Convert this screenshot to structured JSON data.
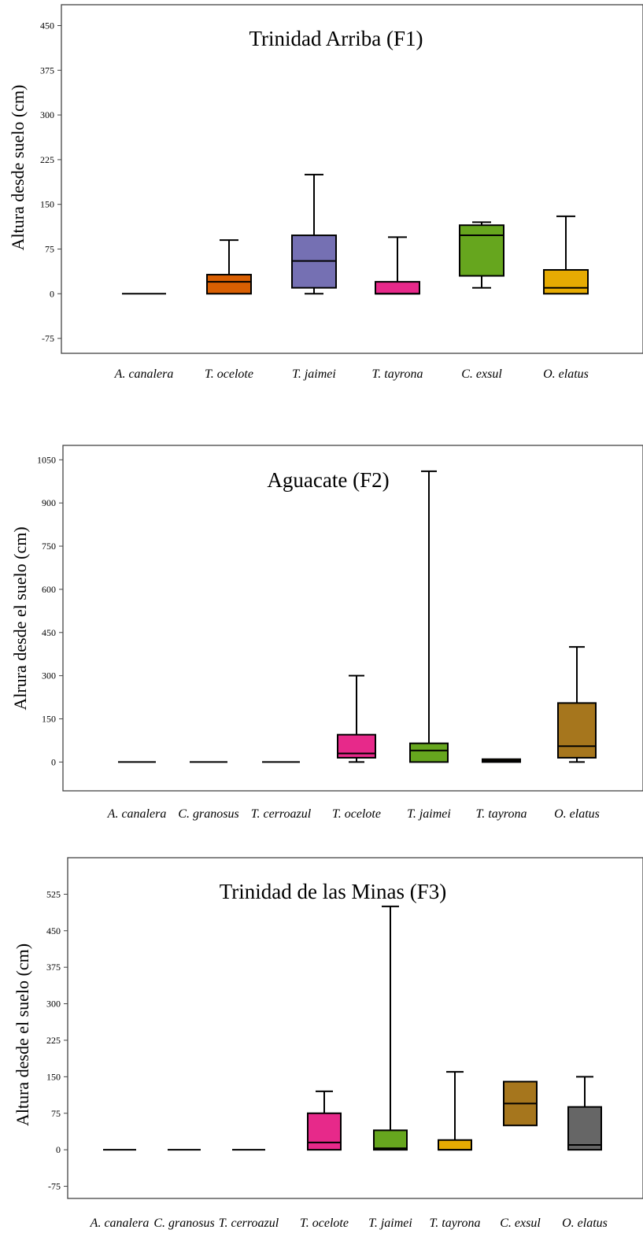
{
  "chart_data": [
    {
      "type": "box",
      "title": "Trinidad Arriba (F1)",
      "ylabel": "Altura desde suelo (cm)",
      "ylim": [
        -100,
        485
      ],
      "yticks": [
        -75,
        0,
        75,
        150,
        225,
        300,
        375,
        450
      ],
      "categories": [
        "A. canalera",
        "T. ocelote",
        "T. jaimei",
        "T. tayrona",
        "C. exsul",
        "O. elatus"
      ],
      "boxes": [
        {
          "category": "A. canalera",
          "color": "#000000",
          "min": 0,
          "q1": 0,
          "median": 0,
          "q3": 0,
          "max": 0
        },
        {
          "category": "T. ocelote",
          "color": "#d95f02",
          "min": 0,
          "q1": 0,
          "median": 20,
          "q3": 32,
          "max": 90
        },
        {
          "category": "T. jaimei",
          "color": "#7570b3",
          "min": 0,
          "q1": 10,
          "median": 55,
          "q3": 98,
          "max": 200
        },
        {
          "category": "T. tayrona",
          "color": "#e7298a",
          "min": 0,
          "q1": 0,
          "median": 0,
          "q3": 20,
          "max": 95
        },
        {
          "category": "C. exsul",
          "color": "#66a61e",
          "min": 10,
          "q1": 30,
          "median": 98,
          "q3": 115,
          "max": 120
        },
        {
          "category": "O. elatus",
          "color": "#e6ab02",
          "min": 0,
          "q1": 0,
          "median": 10,
          "q3": 40,
          "max": 130
        }
      ]
    },
    {
      "type": "box",
      "title": "Aguacate (F2)",
      "ylabel": "Alrura desde el suelo (cm)",
      "ylim": [
        -100,
        1100
      ],
      "yticks": [
        0,
        150,
        300,
        450,
        600,
        750,
        900,
        1050
      ],
      "categories": [
        "A. canalera",
        "C. granosus",
        "T. cerroazul",
        "T. ocelote",
        "T. jaimei",
        "T. tayrona",
        "O. elatus"
      ],
      "boxes": [
        {
          "category": "A. canalera",
          "color": "#000000",
          "min": 0,
          "q1": 0,
          "median": 0,
          "q3": 0,
          "max": 0
        },
        {
          "category": "C. granosus",
          "color": "#000000",
          "min": 0,
          "q1": 0,
          "median": 0,
          "q3": 0,
          "max": 0
        },
        {
          "category": "T. cerroazul",
          "color": "#000000",
          "min": 0,
          "q1": 0,
          "median": 0,
          "q3": 0,
          "max": 0
        },
        {
          "category": "T. ocelote",
          "color": "#e7298a",
          "min": 0,
          "q1": 15,
          "median": 30,
          "q3": 95,
          "max": 300
        },
        {
          "category": "T. jaimei",
          "color": "#66a61e",
          "min": 0,
          "q1": 0,
          "median": 40,
          "q3": 65,
          "max": 1010
        },
        {
          "category": "T. tayrona",
          "color": "#e6ab02",
          "min": 0,
          "q1": 0,
          "median": 5,
          "q3": 10,
          "max": 10
        },
        {
          "category": "O. elatus",
          "color": "#a6761d",
          "min": 0,
          "q1": 15,
          "median": 55,
          "q3": 205,
          "max": 400
        }
      ]
    },
    {
      "type": "box",
      "title": "Trinidad de las Minas (F3)",
      "ylabel": "Altura desde el suelo (cm)",
      "ylim": [
        -100,
        600
      ],
      "yticks": [
        -75,
        0,
        75,
        150,
        225,
        300,
        375,
        450,
        525
      ],
      "categories": [
        "A. canalera",
        "C. granosus",
        "T. cerroazul",
        "T. ocelote",
        "T. jaimei",
        "T. tayrona",
        "C. exsul",
        "O. elatus"
      ],
      "boxes": [
        {
          "category": "A. canalera",
          "color": "#000000",
          "min": 0,
          "q1": 0,
          "median": 0,
          "q3": 0,
          "max": 0
        },
        {
          "category": "C. granosus",
          "color": "#000000",
          "min": 0,
          "q1": 0,
          "median": 0,
          "q3": 0,
          "max": 0
        },
        {
          "category": "T. cerroazul",
          "color": "#000000",
          "min": 0,
          "q1": 0,
          "median": 0,
          "q3": 0,
          "max": 0
        },
        {
          "category": "T. ocelote",
          "color": "#e7298a",
          "min": 0,
          "q1": 0,
          "median": 15,
          "q3": 75,
          "max": 120
        },
        {
          "category": "T. jaimei",
          "color": "#66a61e",
          "min": 0,
          "q1": 0,
          "median": 3,
          "q3": 40,
          "max": 500
        },
        {
          "category": "T. tayrona",
          "color": "#e6ab02",
          "min": 0,
          "q1": 0,
          "median": 0,
          "q3": 20,
          "max": 160
        },
        {
          "category": "C. exsul",
          "color": "#a6761d",
          "min": 50,
          "q1": 50,
          "median": 95,
          "q3": 140,
          "max": 140
        },
        {
          "category": "O. elatus",
          "color": "#666666",
          "min": 0,
          "q1": 0,
          "median": 10,
          "q3": 88,
          "max": 150
        }
      ]
    }
  ]
}
